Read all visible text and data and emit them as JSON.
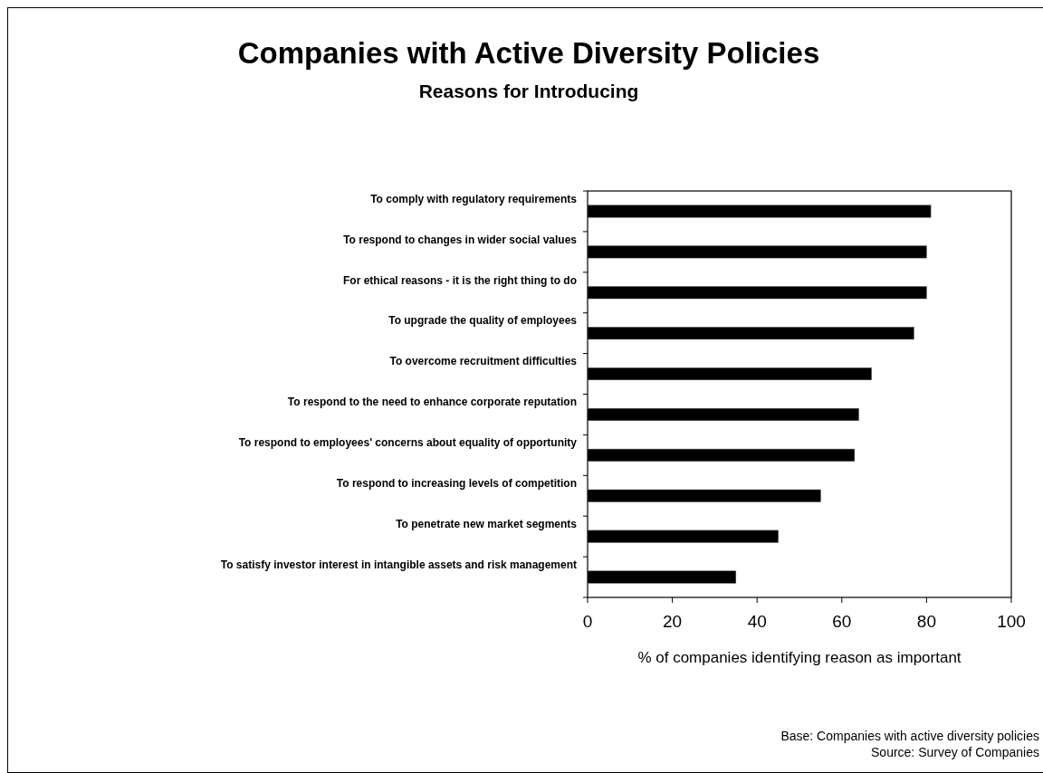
{
  "chart_data": {
    "type": "bar",
    "orientation": "horizontal",
    "title": "Companies with Active Diversity Policies",
    "subtitle": "Reasons for Introducing",
    "categories": [
      "To comply with regulatory requirements",
      "To respond to changes in wider social values",
      "For ethical reasons - it is the right thing to do",
      "To upgrade the quality of employees",
      "To overcome recruitment difficulties",
      "To respond to the need to enhance corporate reputation",
      "To respond to employees' concerns about equality of opportunity",
      "To respond to increasing levels of competition",
      "To penetrate new market segments",
      "To satisfy investor interest in intangible assets and risk management"
    ],
    "values": [
      81,
      80,
      80,
      77,
      67,
      64,
      63,
      55,
      45,
      35
    ],
    "color": "#000000",
    "xlim": [
      0,
      100
    ],
    "xticks": [
      0,
      20,
      40,
      60,
      80,
      100
    ],
    "xlabel": "% of companies identifying reason as important",
    "grid": false,
    "annotations": [
      "Base: Companies with active diversity policies",
      "Source: Survey of Companies"
    ]
  }
}
